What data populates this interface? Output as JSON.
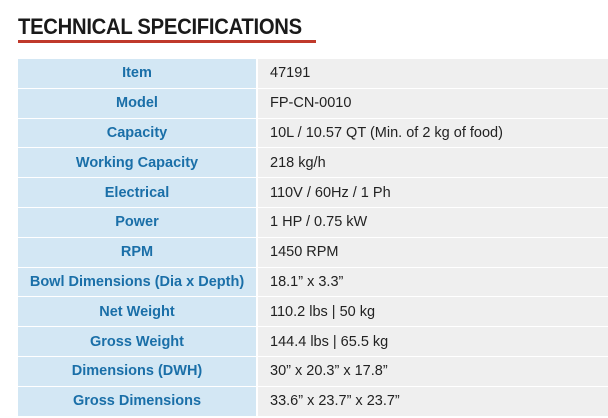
{
  "header": {
    "title": "TECHNICAL SPECIFICATIONS"
  },
  "table": {
    "rows": [
      [
        "Item",
        "47191"
      ],
      [
        "Model",
        "FP-CN-0010"
      ],
      [
        "Capacity",
        "10L / 10.57 QT (Min. of 2 kg of food)"
      ],
      [
        "Working Capacity",
        "218 kg/h"
      ],
      [
        "Electrical",
        "110V / 60Hz / 1 Ph"
      ],
      [
        "Power",
        "1 HP / 0.75 kW"
      ],
      [
        "RPM",
        "1450 RPM"
      ],
      [
        "Bowl Dimensions (Dia x Depth)",
        "18.1” x 3.3”"
      ],
      [
        "Net Weight",
        "110.2 lbs | 50 kg"
      ],
      [
        "Gross Weight",
        "144.4 lbs | 65.5 kg"
      ],
      [
        "Dimensions (DWH)",
        "30” x 20.3” x 17.8”"
      ],
      [
        "Gross Dimensions",
        "33.6” x 23.7” x 23.7”"
      ]
    ]
  }
}
